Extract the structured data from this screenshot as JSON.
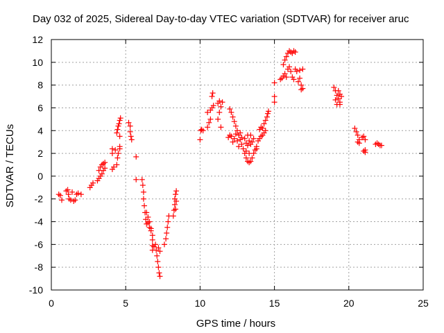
{
  "chart_data": {
    "type": "scatter",
    "title": "Day 032 of 2025, Sidereal Day-to-day VTEC variation (SDTVAR) for receiver aruc",
    "xlabel": "GPS time / hours",
    "ylabel": "SDTVAR / TECUs",
    "xlim": [
      0,
      25
    ],
    "ylim": [
      -10,
      12
    ],
    "xticks": [
      0,
      5,
      10,
      15,
      20,
      25
    ],
    "yticks": [
      -10,
      -8,
      -6,
      -4,
      -2,
      0,
      2,
      4,
      6,
      8,
      10,
      12
    ],
    "grid": true,
    "marker": "+",
    "color": "#ff0000",
    "series": [
      {
        "points": [
          [
            0.5,
            -1.6
          ],
          [
            0.6,
            -1.7
          ],
          [
            0.7,
            -2.1
          ],
          [
            1.0,
            -1.3
          ],
          [
            1.1,
            -1.2
          ],
          [
            1.15,
            -1.6
          ],
          [
            1.2,
            -2.0
          ],
          [
            1.3,
            -2.1
          ],
          [
            1.4,
            -1.4
          ],
          [
            1.5,
            -2.2
          ],
          [
            1.6,
            -2.1
          ],
          [
            1.7,
            -1.6
          ],
          [
            1.8,
            -1.5
          ],
          [
            2.0,
            -1.6
          ],
          [
            2.6,
            -1.0
          ],
          [
            2.7,
            -0.8
          ],
          [
            2.8,
            -0.6
          ],
          [
            3.1,
            -0.4
          ],
          [
            3.2,
            -0.2
          ],
          [
            3.3,
            0.0
          ],
          [
            3.4,
            0.2
          ],
          [
            3.5,
            0.5
          ],
          [
            3.6,
            0.7
          ],
          [
            3.2,
            0.5
          ],
          [
            3.3,
            0.8
          ],
          [
            3.4,
            1.0
          ],
          [
            3.5,
            1.1
          ],
          [
            3.6,
            1.2
          ],
          [
            4.1,
            0.6
          ],
          [
            4.2,
            0.8
          ],
          [
            4.1,
            2.4
          ],
          [
            4.1,
            2.0
          ],
          [
            4.3,
            2.3
          ],
          [
            4.4,
            1.0
          ],
          [
            4.45,
            1.6
          ],
          [
            4.5,
            2.0
          ],
          [
            4.6,
            2.4
          ],
          [
            4.6,
            2.6
          ],
          [
            4.4,
            3.8
          ],
          [
            4.45,
            4.1
          ],
          [
            4.5,
            4.4
          ],
          [
            4.55,
            4.6
          ],
          [
            4.6,
            4.9
          ],
          [
            4.65,
            5.1
          ],
          [
            4.6,
            3.5
          ],
          [
            5.2,
            4.7
          ],
          [
            5.3,
            4.4
          ],
          [
            5.3,
            3.9
          ],
          [
            5.35,
            3.5
          ],
          [
            5.4,
            3.2
          ],
          [
            5.7,
            1.7
          ],
          [
            5.7,
            -0.3
          ],
          [
            6.1,
            -0.3
          ],
          [
            6.15,
            -0.8
          ],
          [
            6.2,
            -1.4
          ],
          [
            6.2,
            -2.0
          ],
          [
            6.25,
            -2.6
          ],
          [
            6.3,
            -3.2
          ],
          [
            6.35,
            -3.8
          ],
          [
            6.4,
            -4.2
          ],
          [
            6.5,
            -4.1
          ],
          [
            6.6,
            -4.5
          ],
          [
            6.7,
            -4.8
          ],
          [
            6.8,
            -5.2
          ],
          [
            6.8,
            -5.6
          ],
          [
            6.8,
            -6.1
          ],
          [
            6.8,
            -6.5
          ],
          [
            6.9,
            -6.2
          ],
          [
            6.4,
            -3.2
          ],
          [
            6.5,
            -3.6
          ],
          [
            6.6,
            -4.0
          ],
          [
            6.7,
            -4.6
          ],
          [
            7.0,
            -6.0
          ],
          [
            7.05,
            -6.5
          ],
          [
            7.1,
            -7.0
          ],
          [
            7.15,
            -7.5
          ],
          [
            7.2,
            -8.0
          ],
          [
            7.25,
            -8.5
          ],
          [
            7.3,
            -8.8
          ],
          [
            7.2,
            -6.3
          ],
          [
            7.3,
            -6.6
          ],
          [
            7.6,
            -6.0
          ],
          [
            7.7,
            -5.5
          ],
          [
            7.75,
            -5.0
          ],
          [
            7.8,
            -4.5
          ],
          [
            7.85,
            -4.0
          ],
          [
            7.9,
            -3.5
          ],
          [
            8.2,
            -3.5
          ],
          [
            8.25,
            -3.0
          ],
          [
            8.3,
            -2.5
          ],
          [
            8.3,
            -2.0
          ],
          [
            8.35,
            -1.6
          ],
          [
            8.4,
            -1.3
          ],
          [
            8.4,
            -2.2
          ],
          [
            8.35,
            -2.9
          ],
          [
            10.0,
            3.2
          ],
          [
            10.05,
            4.0
          ],
          [
            10.1,
            4.1
          ],
          [
            10.2,
            4.0
          ],
          [
            10.5,
            4.3
          ],
          [
            10.6,
            4.7
          ],
          [
            10.7,
            5.0
          ],
          [
            10.5,
            5.6
          ],
          [
            10.7,
            5.8
          ],
          [
            10.8,
            6.0
          ],
          [
            10.9,
            6.2
          ],
          [
            10.8,
            7.0
          ],
          [
            10.85,
            7.3
          ],
          [
            11.2,
            6.4
          ],
          [
            11.3,
            6.6
          ],
          [
            11.4,
            6.1
          ],
          [
            11.3,
            5.6
          ],
          [
            11.2,
            5.0
          ],
          [
            11.5,
            6.5
          ],
          [
            11.4,
            4.3
          ],
          [
            11.9,
            3.4
          ],
          [
            12.0,
            3.6
          ],
          [
            12.1,
            3.5
          ],
          [
            12.0,
            5.9
          ],
          [
            12.1,
            5.6
          ],
          [
            12.2,
            5.2
          ],
          [
            12.3,
            4.8
          ],
          [
            12.4,
            4.4
          ],
          [
            12.5,
            4.0
          ],
          [
            12.6,
            3.6
          ],
          [
            12.7,
            3.2
          ],
          [
            12.8,
            2.8
          ],
          [
            12.9,
            2.4
          ],
          [
            12.2,
            3.0
          ],
          [
            12.3,
            3.3
          ],
          [
            12.4,
            3.7
          ],
          [
            12.5,
            3.1
          ],
          [
            12.6,
            2.6
          ],
          [
            12.7,
            3.8
          ],
          [
            12.8,
            3.4
          ],
          [
            13.0,
            2.0
          ],
          [
            13.1,
            1.6
          ],
          [
            13.2,
            1.3
          ],
          [
            13.3,
            1.2
          ],
          [
            13.4,
            1.3
          ],
          [
            13.5,
            1.6
          ],
          [
            13.6,
            2.0
          ],
          [
            13.7,
            2.3
          ],
          [
            13.8,
            2.6
          ],
          [
            13.0,
            3.3
          ],
          [
            13.1,
            2.9
          ],
          [
            13.2,
            2.7
          ],
          [
            13.3,
            3.1
          ],
          [
            13.4,
            2.8
          ],
          [
            13.5,
            3.0
          ],
          [
            13.6,
            3.3
          ],
          [
            13.2,
            3.6
          ],
          [
            13.4,
            3.6
          ],
          [
            13.1,
            2.2
          ],
          [
            13.3,
            2.0
          ],
          [
            13.9,
            3.1
          ],
          [
            14.0,
            3.3
          ],
          [
            14.1,
            3.5
          ],
          [
            14.2,
            3.6
          ],
          [
            14.3,
            3.8
          ],
          [
            14.4,
            4.0
          ],
          [
            13.8,
            2.4
          ],
          [
            14.0,
            4.1
          ],
          [
            14.1,
            4.3
          ],
          [
            14.2,
            4.2
          ],
          [
            14.3,
            4.6
          ],
          [
            14.4,
            4.9
          ],
          [
            14.5,
            5.2
          ],
          [
            14.55,
            5.5
          ],
          [
            14.6,
            5.7
          ],
          [
            15.0,
            8.2
          ],
          [
            15.0,
            7.0
          ],
          [
            15.0,
            6.5
          ],
          [
            15.4,
            8.5
          ],
          [
            15.5,
            8.6
          ],
          [
            15.6,
            8.8
          ],
          [
            15.7,
            9.0
          ],
          [
            15.8,
            8.7
          ],
          [
            15.6,
            9.8
          ],
          [
            15.7,
            10.2
          ],
          [
            15.8,
            10.5
          ],
          [
            15.9,
            10.8
          ],
          [
            16.0,
            11.0
          ],
          [
            16.1,
            10.9
          ],
          [
            16.2,
            10.8
          ],
          [
            16.3,
            11.0
          ],
          [
            16.4,
            10.9
          ],
          [
            15.9,
            9.4
          ],
          [
            16.0,
            9.6
          ],
          [
            16.1,
            9.2
          ],
          [
            16.2,
            8.7
          ],
          [
            16.3,
            8.5
          ],
          [
            16.4,
            9.4
          ],
          [
            16.5,
            9.2
          ],
          [
            16.6,
            8.3
          ],
          [
            16.7,
            8.6
          ],
          [
            16.8,
            8.0
          ],
          [
            16.9,
            7.7
          ],
          [
            16.8,
            7.6
          ],
          [
            16.7,
            9.3
          ],
          [
            16.9,
            9.4
          ],
          [
            19.0,
            7.8
          ],
          [
            19.1,
            7.5
          ],
          [
            19.2,
            7.1
          ],
          [
            19.3,
            6.8
          ],
          [
            19.4,
            6.5
          ],
          [
            19.3,
            7.5
          ],
          [
            19.4,
            7.2
          ],
          [
            19.5,
            7.0
          ],
          [
            19.1,
            6.7
          ],
          [
            19.2,
            6.3
          ],
          [
            19.4,
            6.3
          ],
          [
            20.4,
            4.2
          ],
          [
            20.5,
            3.9
          ],
          [
            20.6,
            3.6
          ],
          [
            20.7,
            3.2
          ],
          [
            20.7,
            2.9
          ],
          [
            20.6,
            3.0
          ],
          [
            20.9,
            3.4
          ],
          [
            21.0,
            3.5
          ],
          [
            21.1,
            3.2
          ],
          [
            21.1,
            2.3
          ],
          [
            21.1,
            2.1
          ],
          [
            21.0,
            2.2
          ],
          [
            21.8,
            2.8
          ],
          [
            21.9,
            2.9
          ],
          [
            22.0,
            2.8
          ],
          [
            22.1,
            2.7
          ],
          [
            22.2,
            2.7
          ]
        ]
      }
    ]
  }
}
